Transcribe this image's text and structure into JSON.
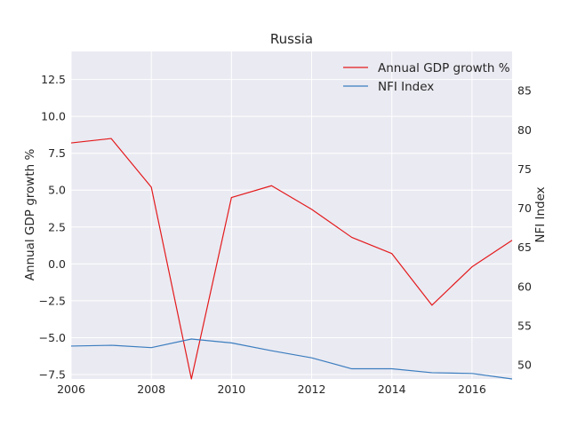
{
  "chart_data": {
    "type": "line",
    "title": "Russia",
    "xlabel": "",
    "ylabel": "Annual GDP growth %",
    "y2label": "NFI Index",
    "x": [
      2006,
      2007,
      2008,
      2009,
      2010,
      2011,
      2012,
      2013,
      2014,
      2015,
      2016,
      2017
    ],
    "xlim": [
      2006,
      2017
    ],
    "ylim": [
      -7.8,
      14.4
    ],
    "y2lim": [
      48.2,
      90.0
    ],
    "xticks": [
      "2006",
      "2008",
      "2010",
      "2012",
      "2014",
      "2016"
    ],
    "yticks": [
      "12.5",
      "10.0",
      "7.5",
      "5.0",
      "2.5",
      "0.0",
      "−2.5",
      "−5.0",
      "−7.5"
    ],
    "y2ticks": [
      "85",
      "80",
      "75",
      "70",
      "65",
      "60",
      "55",
      "50"
    ],
    "grid": true,
    "legend_position": "top-right",
    "series": [
      {
        "name": "Annual GDP growth %",
        "axis": "left",
        "color": "#e31a1c",
        "values": [
          8.2,
          8.5,
          5.2,
          -7.8,
          4.5,
          5.3,
          3.7,
          1.8,
          0.7,
          -2.8,
          -0.2,
          1.6
        ]
      },
      {
        "name": "NFI Index",
        "axis": "right",
        "color": "#3b7dbf",
        "values": [
          52.4,
          52.5,
          52.2,
          53.3,
          52.8,
          51.8,
          50.9,
          49.5,
          49.5,
          49.0,
          48.9,
          48.2
        ]
      }
    ]
  }
}
